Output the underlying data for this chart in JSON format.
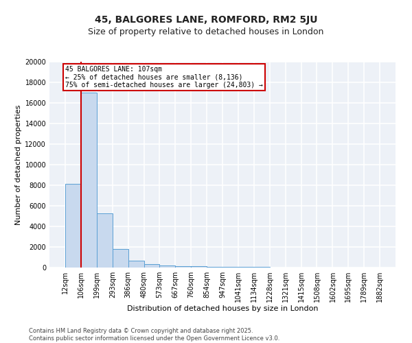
{
  "title1": "45, BALGORES LANE, ROMFORD, RM2 5JU",
  "title2": "Size of property relative to detached houses in London",
  "xlabel": "Distribution of detached houses by size in London",
  "ylabel": "Number of detached properties",
  "footnote1": "Contains HM Land Registry data © Crown copyright and database right 2025.",
  "footnote2": "Contains public sector information licensed under the Open Government Licence v3.0.",
  "property_size": 107,
  "annotation_line1": "45 BALGORES LANE: 107sqm",
  "annotation_line2": "← 25% of detached houses are smaller (8,136)",
  "annotation_line3": "75% of semi-detached houses are larger (24,803) →",
  "bar_color": "#c8d9ee",
  "bar_edge_color": "#5a9fd4",
  "red_line_color": "#cc0000",
  "annotation_box_color": "#cc0000",
  "bins": [
    12,
    106,
    199,
    293,
    386,
    480,
    573,
    667,
    760,
    854,
    947,
    1041,
    1134,
    1228,
    1321,
    1415,
    1508,
    1602,
    1695,
    1789,
    1882
  ],
  "bin_labels": [
    "12sqm",
    "106sqm",
    "199sqm",
    "293sqm",
    "386sqm",
    "480sqm",
    "573sqm",
    "667sqm",
    "760sqm",
    "854sqm",
    "947sqm",
    "1041sqm",
    "1134sqm",
    "1228sqm",
    "1321sqm",
    "1415sqm",
    "1508sqm",
    "1602sqm",
    "1695sqm",
    "1789sqm",
    "1882sqm"
  ],
  "bar_heights": [
    8136,
    17000,
    5300,
    1800,
    650,
    350,
    230,
    150,
    110,
    80,
    65,
    50,
    38,
    32,
    28,
    22,
    18,
    13,
    9,
    7
  ],
  "ylim": [
    0,
    20000
  ],
  "yticks": [
    0,
    2000,
    4000,
    6000,
    8000,
    10000,
    12000,
    14000,
    16000,
    18000,
    20000
  ],
  "bg_color": "#edf1f7",
  "grid_color": "#ffffff",
  "title1_fontsize": 10,
  "title2_fontsize": 9,
  "tick_fontsize": 7,
  "ylabel_fontsize": 8,
  "xlabel_fontsize": 8,
  "footnote_fontsize": 6,
  "annotation_fontsize": 7
}
